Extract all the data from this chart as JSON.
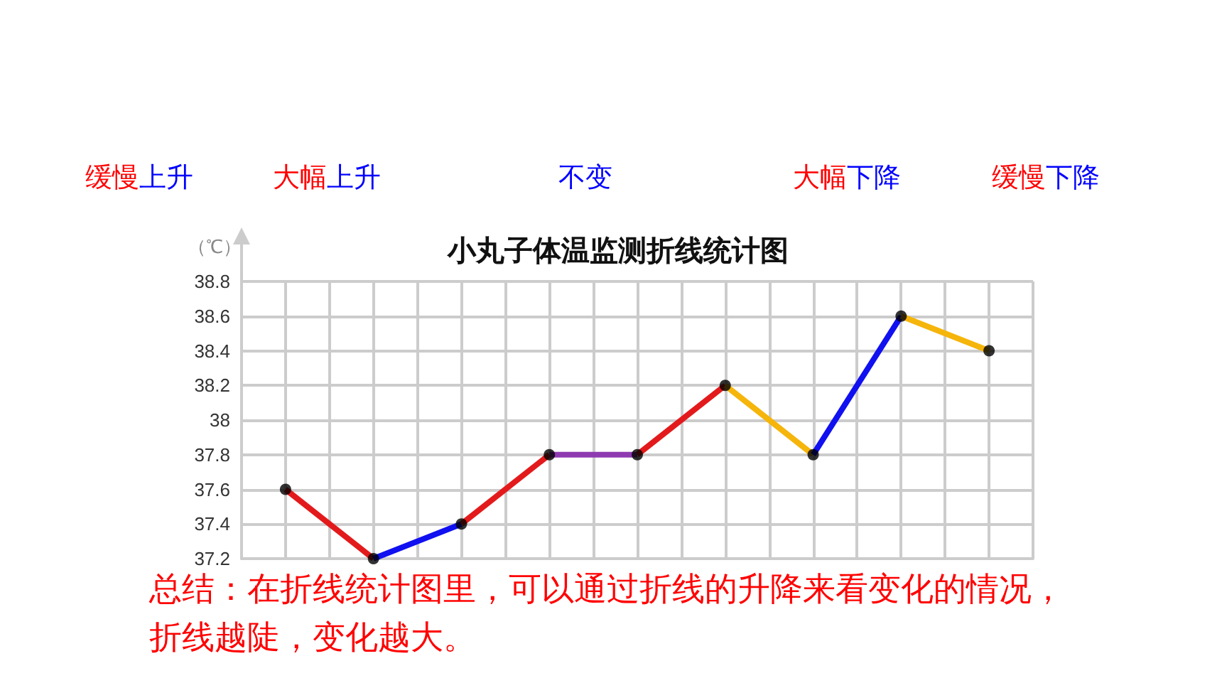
{
  "chart_data": {
    "type": "line",
    "title": "小丸子体温监测折线统计图",
    "ylabel": "（℃）",
    "annotations": [
      "缓慢上升",
      "大幅上升",
      "不变",
      "大幅下降",
      "缓慢下降",
      "总结：在折线统计图里，可以通过折线的升降来看变化的情况，折线越陡，变化越大。"
    ],
    "categories": [
      null,
      null,
      null,
      null,
      null,
      null,
      null,
      null,
      null
    ],
    "series": [
      {
        "color": "#e31a1c",
        "values": [
          37.6,
          37.2,
          null,
          null,
          null,
          null,
          null,
          null,
          null
        ]
      },
      {
        "color": "#1010f0",
        "values": [
          null,
          37.2,
          37.4,
          null,
          null,
          null,
          null,
          null,
          null
        ]
      },
      {
        "color": "#e31a1c",
        "values": [
          null,
          null,
          37.4,
          37.8,
          null,
          null,
          null,
          null,
          null
        ]
      },
      {
        "color": "#8e3ab0",
        "values": [
          null,
          null,
          null,
          37.8,
          37.8,
          null,
          null,
          null,
          null
        ]
      },
      {
        "color": "#e31a1c",
        "values": [
          null,
          null,
          null,
          null,
          37.8,
          38.2,
          null,
          null,
          null
        ]
      },
      {
        "color": "#f5b50a",
        "values": [
          null,
          null,
          null,
          null,
          null,
          38.2,
          37.8,
          null,
          null
        ]
      },
      {
        "color": "#1010f0",
        "values": [
          null,
          null,
          null,
          null,
          null,
          null,
          37.8,
          38.6,
          null
        ]
      },
      {
        "color": "#f5b50a",
        "values": [
          null,
          null,
          null,
          null,
          null,
          null,
          null,
          38.6,
          38.4
        ]
      },
      {
        "type": "scatter",
        "color": "#000000",
        "values": [
          37.6,
          37.2,
          37.4,
          37.8,
          37.8,
          38.2,
          37.8,
          38.6,
          38.4
        ]
      }
    ],
    "ylim": [
      37.2,
      38.8
    ],
    "yticks": [
      37.2,
      37.4,
      37.6,
      37.8,
      38,
      38.2,
      38.4,
      38.6,
      38.8
    ],
    "grid": true,
    "line_style": "solid",
    "tick_labels": "y"
  }
}
